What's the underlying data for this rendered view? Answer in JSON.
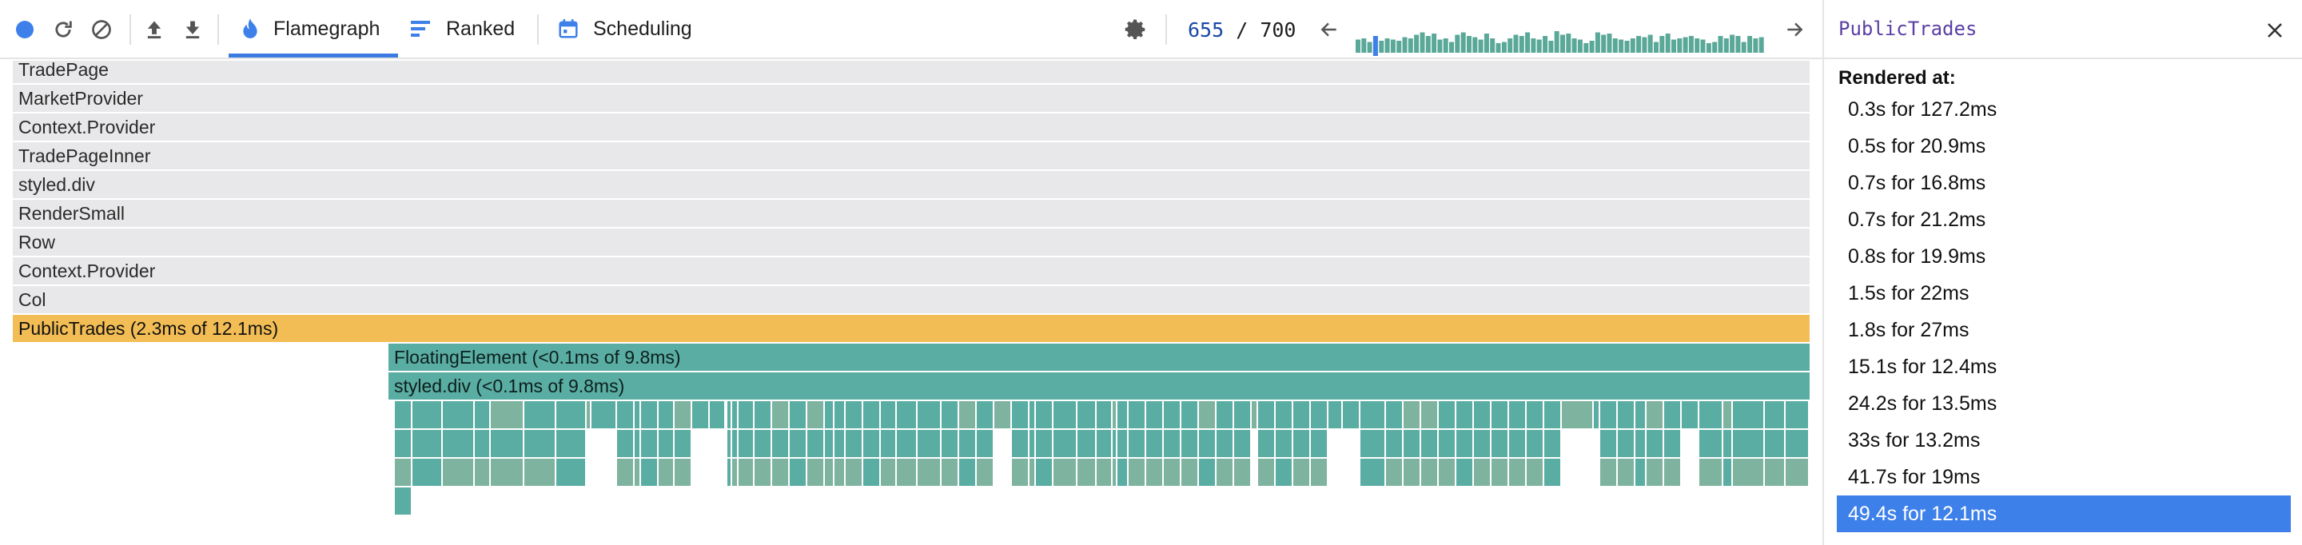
{
  "toolbar": {
    "icons": [
      "record-icon",
      "reload-icon",
      "clear-icon",
      "upload-icon",
      "download-icon"
    ],
    "tabs": [
      {
        "label": "Flamegraph",
        "icon": "flame-icon",
        "active": true
      },
      {
        "label": "Ranked",
        "icon": "ranked-icon",
        "active": false
      },
      {
        "label": "Scheduling",
        "icon": "calendar-icon",
        "active": false
      }
    ],
    "settings_icon": "gear-icon",
    "commit_current": "655",
    "commit_separator": " / ",
    "commit_total": "700",
    "prev_icon": "arrow-left-icon",
    "next_icon": "arrow-right-icon",
    "accent_color": "#3b7be0"
  },
  "commit_bars": {
    "selected_index": 3,
    "heights": [
      0.55,
      0.6,
      0.45,
      0.7,
      0.5,
      0.6,
      0.55,
      0.5,
      0.65,
      0.6,
      0.75,
      0.85,
      0.7,
      0.8,
      0.55,
      0.6,
      0.45,
      0.75,
      0.85,
      0.7,
      0.65,
      0.55,
      0.8,
      0.6,
      0.4,
      0.45,
      0.6,
      0.75,
      0.7,
      0.85,
      0.6,
      0.55,
      0.7,
      0.5,
      0.9,
      0.75,
      0.8,
      0.6,
      0.55,
      0.4,
      0.5,
      0.85,
      0.75,
      0.8,
      0.6,
      0.55,
      0.5,
      0.6,
      0.7,
      0.65,
      0.75,
      0.45,
      0.7,
      0.8,
      0.55,
      0.6,
      0.65,
      0.7,
      0.6,
      0.55,
      0.4,
      0.45,
      0.7,
      0.6,
      0.75,
      0.7,
      0.45,
      0.7,
      0.6,
      0.65
    ],
    "color": "#5aa898",
    "selected_color": "#3d80ea"
  },
  "flamegraph": {
    "ancestors": [
      "TradePage",
      "MarketProvider",
      "Context.Provider",
      "TradePageInner",
      "styled.div",
      "RenderSmall",
      "Row",
      "Context.Provider",
      "Col"
    ],
    "selected": "PublicTrades (2.3ms of 12.1ms)",
    "children": [
      "FloatingElement (<0.1ms of 9.8ms)",
      "styled.div (<0.1ms of 9.8ms)"
    ],
    "colors": {
      "ancestor": "#e8e8ea",
      "selected": "#f3bd55",
      "child": "#5aada3",
      "child_alt": "#7eb3a0"
    }
  },
  "sidebar": {
    "title": "PublicTrades",
    "close_icon": "close-icon",
    "rendered_label": "Rendered at:",
    "renders": [
      "0.3s for 127.2ms",
      "0.5s for 20.9ms",
      "0.7s for 16.8ms",
      "0.7s for 21.2ms",
      "0.8s for 19.9ms",
      "1.5s for 22ms",
      "1.8s for 27ms",
      "15.1s for 12.4ms",
      "24.2s for 13.5ms",
      "33s for 13.2ms",
      "41.7s for 19ms",
      "49.4s for 12.1ms"
    ],
    "selected_render": 11
  }
}
